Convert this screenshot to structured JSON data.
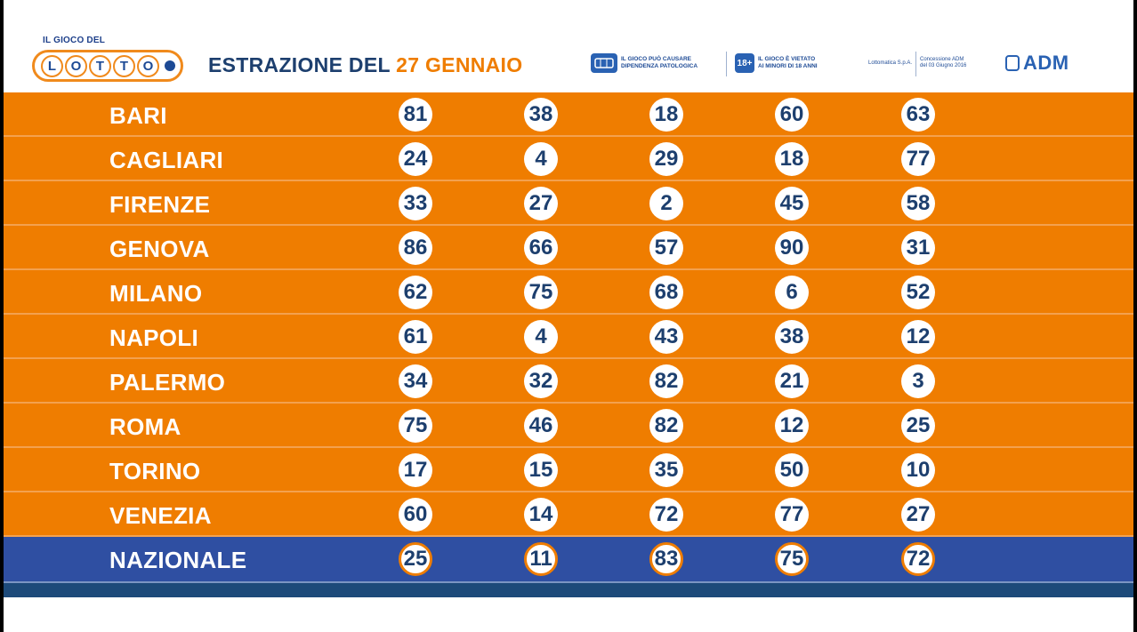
{
  "logo": {
    "small": "IL GIOCO DEL",
    "letters": [
      "L",
      "O",
      "T",
      "T",
      "O"
    ]
  },
  "title": {
    "prefix": "ESTRAZIONE DEL",
    "date": "27 GENNAIO"
  },
  "notices": [
    {
      "icon": "",
      "line1": "IL GIOCO PUÒ CAUSARE",
      "line2": "DIPENDENZA PATOLOGICA"
    },
    {
      "icon": "18+",
      "line1": "IL GIOCO È VIETATO",
      "line2": "AI MINORI DI 18 ANNI"
    }
  ],
  "concession": {
    "left": "Lottomatica S.p.A.",
    "right1": "Concessione ADM",
    "right2": "del 03 Giugno 2016"
  },
  "adm": "ADM",
  "rows": [
    {
      "city": "BARI",
      "numbers": [
        "81",
        "38",
        "18",
        "60",
        "63"
      ]
    },
    {
      "city": "CAGLIARI",
      "numbers": [
        "24",
        "4",
        "29",
        "18",
        "77"
      ]
    },
    {
      "city": "FIRENZE",
      "numbers": [
        "33",
        "27",
        "2",
        "45",
        "58"
      ]
    },
    {
      "city": "GENOVA",
      "numbers": [
        "86",
        "66",
        "57",
        "90",
        "31"
      ]
    },
    {
      "city": "MILANO",
      "numbers": [
        "62",
        "75",
        "68",
        "6",
        "52"
      ]
    },
    {
      "city": "NAPOLI",
      "numbers": [
        "61",
        "4",
        "43",
        "38",
        "12"
      ]
    },
    {
      "city": "PALERMO",
      "numbers": [
        "34",
        "32",
        "82",
        "21",
        "3"
      ]
    },
    {
      "city": "ROMA",
      "numbers": [
        "75",
        "46",
        "82",
        "12",
        "25"
      ]
    },
    {
      "city": "TORINO",
      "numbers": [
        "17",
        "15",
        "35",
        "50",
        "10"
      ]
    },
    {
      "city": "VENEZIA",
      "numbers": [
        "60",
        "14",
        "72",
        "77",
        "27"
      ]
    },
    {
      "city": "NAZIONALE",
      "numbers": [
        "25",
        "11",
        "83",
        "75",
        "72"
      ]
    }
  ],
  "colors": {
    "orange": "#ef7d00",
    "blue": "#2f4fa2",
    "navy": "#1d3f6e"
  }
}
